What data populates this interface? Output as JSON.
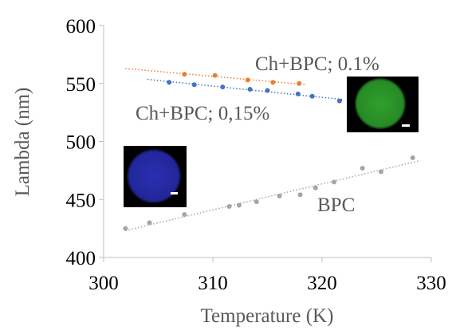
{
  "chart_data": {
    "type": "scatter",
    "xlabel": "Temperature (K)",
    "ylabel": "Lambda (nm)",
    "xlim": [
      300,
      330
    ],
    "xticks": [
      300,
      310,
      320,
      330
    ],
    "ylim": [
      400,
      600
    ],
    "yticks": [
      400,
      450,
      500,
      550,
      600
    ],
    "grid": false,
    "trendline": true,
    "series": [
      {
        "name": "Ch+BPC; 0.1%",
        "color": "#ed7d31",
        "x": [
          307.4,
          310.2,
          313.2,
          315.5,
          317.9
        ],
        "values": [
          558,
          557,
          553,
          551,
          550
        ]
      },
      {
        "name": "Ch+BPC; 0,15%",
        "color": "#4472c4",
        "x": [
          306,
          308.3,
          310.9,
          313.4,
          315,
          317.8,
          319.1,
          321.6
        ],
        "values": [
          551,
          549,
          547,
          545,
          544,
          541,
          539,
          535
        ]
      },
      {
        "name": "BPC",
        "color": "#a5a5a5",
        "x": [
          302,
          304.2,
          307.4,
          311.5,
          312.4,
          314,
          316.1,
          318,
          319.4,
          321.1,
          323.7,
          325.4,
          328.3
        ],
        "values": [
          425,
          430,
          437,
          444,
          445,
          448,
          453,
          454,
          460,
          465,
          477,
          474,
          486
        ]
      }
    ]
  }
}
